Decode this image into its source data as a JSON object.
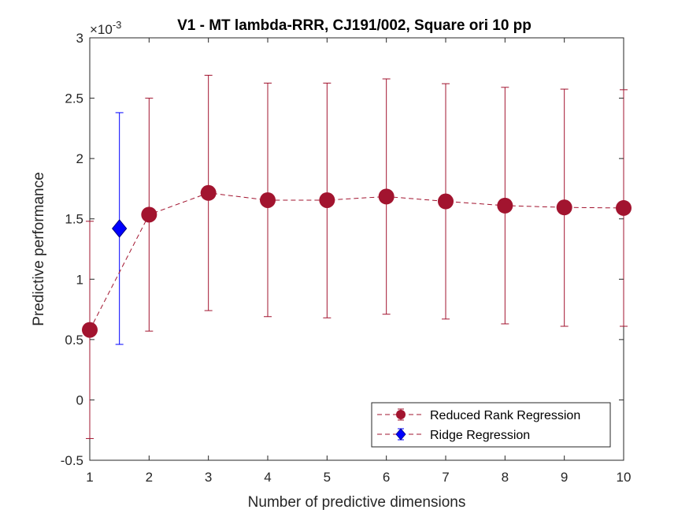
{
  "chart_data": {
    "type": "scatter",
    "title": "V1 - MT lambda-RRR, CJ191/002, Square ori 10 pp",
    "xlabel": "Number of predictive dimensions",
    "ylabel": "Predictive performance",
    "exponent_base": "×10",
    "exponent_power": "-3",
    "xlim": [
      1,
      10
    ],
    "ylim": [
      -0.5,
      3
    ],
    "xticks": [
      "1",
      "2",
      "3",
      "4",
      "5",
      "6",
      "7",
      "8",
      "9",
      "10"
    ],
    "yticks": [
      "-0.5",
      "0",
      "0.5",
      "1",
      "1.5",
      "2",
      "2.5",
      "3"
    ],
    "grid": false,
    "legend_position": "bottom-right",
    "colors": {
      "rrr": "#a2142f",
      "ridge": "#0000ff"
    },
    "series": [
      {
        "name": "Reduced Rank Regression",
        "marker": "circle",
        "line": "dashed",
        "x": [
          1,
          2,
          3,
          4,
          5,
          6,
          7,
          8,
          9,
          10
        ],
        "y": [
          0.58,
          1.535,
          1.715,
          1.655,
          1.655,
          1.685,
          1.645,
          1.61,
          1.595,
          1.59
        ],
        "err_low": [
          -0.32,
          0.57,
          0.74,
          0.69,
          0.68,
          0.71,
          0.67,
          0.63,
          0.61,
          0.61
        ],
        "err_high": [
          1.48,
          2.5,
          2.69,
          2.625,
          2.625,
          2.66,
          2.62,
          2.59,
          2.575,
          2.57
        ]
      },
      {
        "name": "Ridge Regression",
        "marker": "diamond",
        "line": "none",
        "x": [
          1.5
        ],
        "y": [
          1.42
        ],
        "err_low": [
          0.46
        ],
        "err_high": [
          2.38
        ]
      }
    ]
  }
}
